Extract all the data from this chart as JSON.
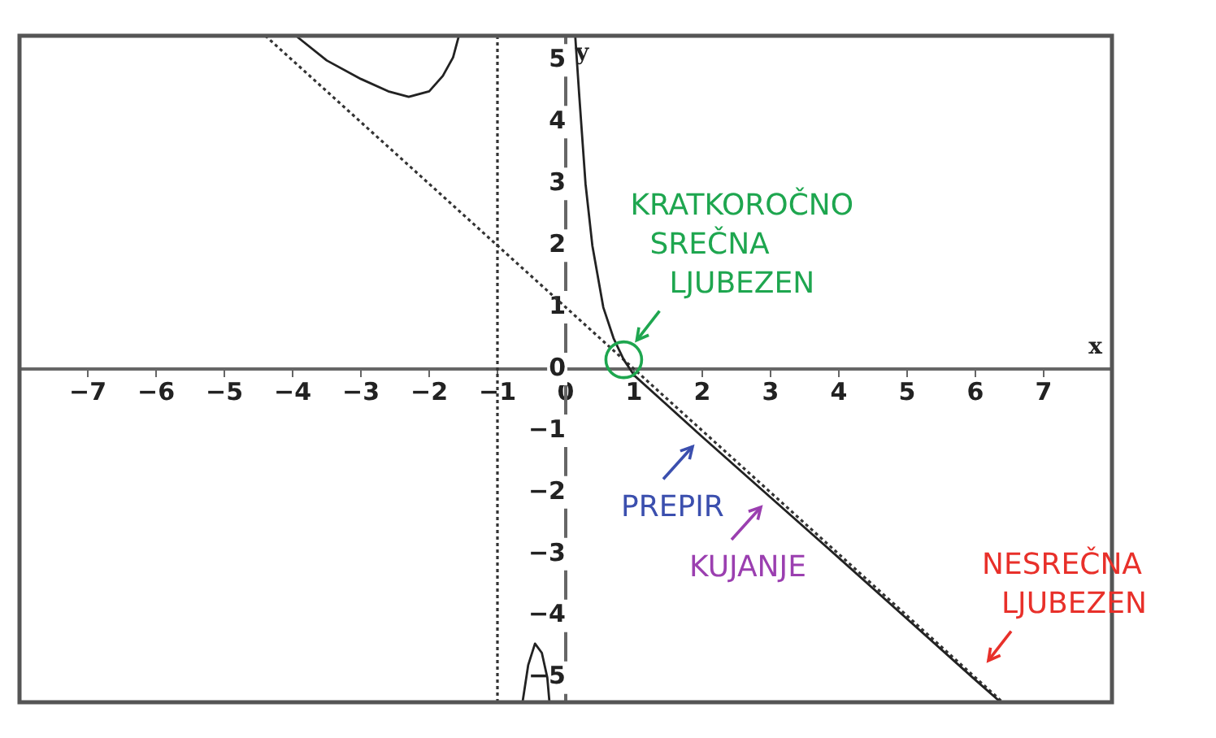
{
  "chart_data": {
    "type": "line",
    "xlabel": "x",
    "ylabel": "y",
    "xlim": [
      -8,
      8
    ],
    "ylim": [
      -5.4,
      5.4
    ],
    "xticks": [
      -7,
      -6,
      -5,
      -4,
      -3,
      -2,
      -1,
      0,
      1,
      2,
      3,
      4,
      5,
      6,
      7
    ],
    "yticks": [
      -5,
      -4,
      -3,
      -2,
      -1,
      0,
      1,
      2,
      3,
      4,
      5
    ],
    "grid": false,
    "legend": false,
    "marker": "none",
    "series": [
      {
        "color": "#222222",
        "line_style": "solid",
        "x": [
          -3.93,
          -3.5,
          -3.0,
          -2.6,
          -2.3,
          -2.0,
          -1.8,
          -1.65,
          -1.57,
          -1.2,
          -0.63,
          -0.55,
          -0.45,
          -0.35,
          -0.27,
          -0.24,
          0.0,
          0.14,
          0.2,
          0.29,
          0.39,
          0.55,
          0.7,
          0.85,
          1.0,
          1.5,
          2,
          3,
          4,
          5,
          6,
          6.35
        ],
        "values": [
          5.38,
          5.0,
          4.7,
          4.5,
          4.41,
          4.5,
          4.75,
          5.05,
          5.38,
          null,
          -5.38,
          -4.8,
          -4.45,
          -4.6,
          -5.0,
          -5.38,
          null,
          5.38,
          4.4,
          3.0,
          2.0,
          1.0,
          0.5,
          0.15,
          -0.1,
          -0.6,
          -1.1,
          -2.08,
          -3.06,
          -4.05,
          -5.04,
          -5.38
        ]
      },
      {
        "color": "#333333",
        "line_style": "dotted",
        "x": [
          -4.4,
          6.4
        ],
        "values": [
          5.4,
          -5.4
        ]
      }
    ],
    "ref_lines": [
      {
        "axis": "x",
        "value": -1,
        "color": "#333333",
        "line_style": "dotted"
      }
    ],
    "annotations": [
      {
        "text": "KRATKOROČNO\nSREČNA\nLJUBEZEN",
        "x": 0.85,
        "y": 0.15
      },
      {
        "text": "PREPIR",
        "x": 2,
        "y": -1.1
      },
      {
        "text": "KUJANJE",
        "x": 3,
        "y": -2.08
      },
      {
        "text": "NESREČNA\nLJUBEZEN",
        "x": 6,
        "y": -5.04
      }
    ]
  }
}
